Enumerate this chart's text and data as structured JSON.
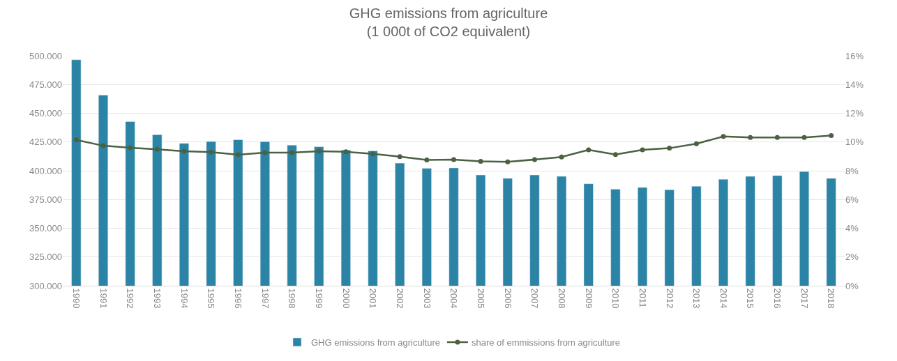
{
  "chart_data": {
    "type": "bar",
    "title": "GHG emissions from agriculture\n(1 000t of CO2 equivalent)",
    "categories": [
      "1990",
      "1991",
      "1992",
      "1993",
      "1994",
      "1995",
      "1996",
      "1997",
      "1998",
      "1999",
      "2000",
      "2001",
      "2002",
      "2003",
      "2004",
      "2005",
      "2006",
      "2007",
      "2008",
      "2009",
      "2010",
      "2011",
      "2012",
      "2013",
      "2014",
      "2015",
      "2016",
      "2017",
      "2018"
    ],
    "series": [
      {
        "name": "GHG emissions from agriculture",
        "color": "#2b84a6",
        "values": [
          496500,
          465800,
          442800,
          431300,
          423800,
          425400,
          427000,
          425300,
          422300,
          420900,
          418000,
          417300,
          406600,
          402100,
          402500,
          396300,
          393400,
          396300,
          395100,
          388700,
          384000,
          385500,
          383500,
          386500,
          392600,
          395100,
          395800,
          399300,
          393400
        ]
      },
      {
        "name": "share of emmissions from agriculture",
        "type": "line",
        "axis": "y2",
        "color": "#4a6142",
        "marker": "circle",
        "values": [
          10.15,
          9.74,
          9.6,
          9.49,
          9.36,
          9.3,
          9.11,
          9.26,
          9.26,
          9.36,
          9.32,
          9.17,
          8.98,
          8.75,
          8.78,
          8.66,
          8.62,
          8.78,
          8.96,
          9.45,
          9.13,
          9.45,
          9.57,
          9.88,
          10.39,
          10.31,
          10.31,
          10.31,
          10.45
        ]
      }
    ],
    "ylim": [
      300000,
      500000
    ],
    "yticks": [
      {
        "value": 300000,
        "label": "300.000"
      },
      {
        "value": 325000,
        "label": "325.000"
      },
      {
        "value": 350000,
        "label": "350.000"
      },
      {
        "value": 375000,
        "label": "375.000"
      },
      {
        "value": 400000,
        "label": "400.000"
      },
      {
        "value": 425000,
        "label": "425.000"
      },
      {
        "value": 450000,
        "label": "450.000"
      },
      {
        "value": 475000,
        "label": "475.000"
      },
      {
        "value": 500000,
        "label": "500.000"
      }
    ],
    "y2lim": [
      0,
      16
    ],
    "y2ticks": [
      {
        "value": 0,
        "label": "0%"
      },
      {
        "value": 2,
        "label": "2%"
      },
      {
        "value": 4,
        "label": "4%"
      },
      {
        "value": 6,
        "label": "6%"
      },
      {
        "value": 8,
        "label": "8%"
      },
      {
        "value": 10,
        "label": "10%"
      },
      {
        "value": 12,
        "label": "12%"
      },
      {
        "value": 14,
        "label": "14%"
      },
      {
        "value": 16,
        "label": "16%"
      }
    ],
    "grid": "y",
    "legend": "bottom"
  }
}
